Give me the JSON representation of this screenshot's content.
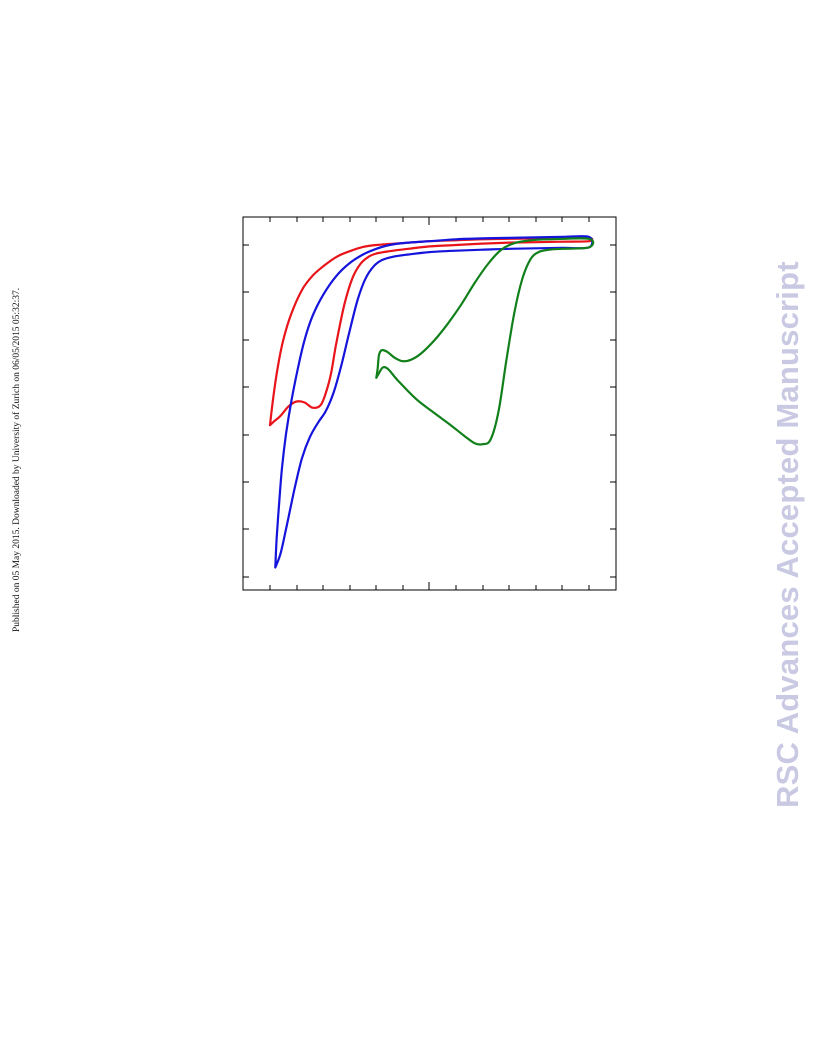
{
  "page": {
    "side_note": "Published on 05 May 2015. Downloaded by University of Zurich on 06/05/2015 05:32:37.",
    "watermark": "RSC Advances Accepted Manuscript"
  },
  "colors": {
    "red": "#e8141a",
    "blue": "#1414dc",
    "green": "#11801a",
    "frame": "#000000"
  },
  "chart_data": {
    "type": "line",
    "title": "",
    "xlabel": "",
    "ylabel": "",
    "xlim": [
      0,
      13
    ],
    "ylim": [
      0,
      7.5
    ],
    "grid": false,
    "legend": "none",
    "series": [
      {
        "color": "red",
        "points": [
          [
            1.0,
            3.2
          ],
          [
            1.05,
            3.45
          ],
          [
            1.15,
            3.9
          ],
          [
            1.3,
            4.45
          ],
          [
            1.5,
            5.0
          ],
          [
            1.8,
            5.55
          ],
          [
            2.2,
            6.05
          ],
          [
            2.6,
            6.35
          ],
          [
            3.0,
            6.55
          ],
          [
            3.5,
            6.75
          ],
          [
            4.0,
            6.87
          ],
          [
            4.5,
            6.96
          ],
          [
            5,
            7.0
          ],
          [
            6,
            7.04
          ],
          [
            7,
            7.08
          ],
          [
            8,
            7.1
          ],
          [
            9,
            7.12
          ],
          [
            10,
            7.13
          ],
          [
            11,
            7.14
          ],
          [
            12,
            7.15
          ],
          [
            13,
            7.15
          ],
          [
            13,
            7.08
          ],
          [
            12,
            7.07
          ],
          [
            11,
            7.06
          ],
          [
            10,
            7.05
          ],
          [
            9,
            7.03
          ],
          [
            8,
            7.0
          ],
          [
            7,
            6.97
          ],
          [
            6.2,
            6.92
          ],
          [
            5.5,
            6.87
          ],
          [
            5.0,
            6.82
          ],
          [
            4.7,
            6.75
          ],
          [
            4.4,
            6.6
          ],
          [
            4.1,
            6.3
          ],
          [
            3.8,
            5.75
          ],
          [
            3.5,
            4.95
          ],
          [
            3.3,
            4.3
          ],
          [
            3.1,
            3.88
          ],
          [
            2.9,
            3.62
          ],
          [
            2.6,
            3.57
          ],
          [
            2.3,
            3.68
          ],
          [
            2.0,
            3.7
          ],
          [
            1.7,
            3.6
          ],
          [
            1.4,
            3.4
          ],
          [
            1.15,
            3.28
          ],
          [
            1.0,
            3.2
          ]
        ]
      },
      {
        "color": "blue",
        "points": [
          [
            1.2,
            0.2
          ],
          [
            1.25,
            0.8
          ],
          [
            1.35,
            1.6
          ],
          [
            1.45,
            2.3
          ],
          [
            1.6,
            3.0
          ],
          [
            1.8,
            3.7
          ],
          [
            2.05,
            4.4
          ],
          [
            2.3,
            5.0
          ],
          [
            2.6,
            5.5
          ],
          [
            3.0,
            5.95
          ],
          [
            3.5,
            6.35
          ],
          [
            4.0,
            6.62
          ],
          [
            4.5,
            6.8
          ],
          [
            5,
            6.92
          ],
          [
            5.5,
            7.0
          ],
          [
            6,
            7.04
          ],
          [
            7,
            7.08
          ],
          [
            8,
            7.12
          ],
          [
            9,
            7.14
          ],
          [
            10,
            7.15
          ],
          [
            11,
            7.16
          ],
          [
            12,
            7.17
          ],
          [
            13,
            7.17
          ],
          [
            13,
            6.95
          ],
          [
            12,
            6.94
          ],
          [
            11,
            6.93
          ],
          [
            10,
            6.92
          ],
          [
            9,
            6.9
          ],
          [
            8,
            6.88
          ],
          [
            7,
            6.85
          ],
          [
            6.2,
            6.8
          ],
          [
            5.6,
            6.75
          ],
          [
            5.2,
            6.68
          ],
          [
            4.9,
            6.55
          ],
          [
            4.6,
            6.3
          ],
          [
            4.3,
            5.85
          ],
          [
            4.0,
            5.2
          ],
          [
            3.7,
            4.5
          ],
          [
            3.4,
            3.9
          ],
          [
            3.1,
            3.5
          ],
          [
            2.8,
            3.25
          ],
          [
            2.5,
            2.95
          ],
          [
            2.2,
            2.5
          ],
          [
            1.9,
            1.8
          ],
          [
            1.6,
            1.0
          ],
          [
            1.4,
            0.5
          ],
          [
            1.2,
            0.2
          ]
        ]
      },
      {
        "color": "green",
        "points": [
          [
            5.0,
            4.2
          ],
          [
            5.05,
            4.4
          ],
          [
            5.1,
            4.68
          ],
          [
            5.2,
            4.78
          ],
          [
            5.4,
            4.75
          ],
          [
            5.7,
            4.62
          ],
          [
            6.0,
            4.55
          ],
          [
            6.3,
            4.58
          ],
          [
            6.7,
            4.72
          ],
          [
            7.2,
            5.0
          ],
          [
            7.7,
            5.35
          ],
          [
            8.2,
            5.75
          ],
          [
            8.7,
            6.2
          ],
          [
            9.2,
            6.6
          ],
          [
            9.7,
            6.9
          ],
          [
            10.2,
            7.04
          ],
          [
            10.8,
            7.1
          ],
          [
            11.5,
            7.12
          ],
          [
            13,
            7.13
          ],
          [
            13,
            6.95
          ],
          [
            12,
            6.92
          ],
          [
            11.5,
            6.9
          ],
          [
            11.1,
            6.85
          ],
          [
            10.8,
            6.7
          ],
          [
            10.5,
            6.3
          ],
          [
            10.2,
            5.6
          ],
          [
            9.9,
            4.6
          ],
          [
            9.6,
            3.5
          ],
          [
            9.3,
            2.9
          ],
          [
            9.0,
            2.8
          ],
          [
            8.7,
            2.82
          ],
          [
            8.3,
            2.98
          ],
          [
            7.8,
            3.2
          ],
          [
            7.2,
            3.45
          ],
          [
            6.5,
            3.75
          ],
          [
            5.8,
            4.15
          ],
          [
            5.45,
            4.38
          ],
          [
            5.25,
            4.42
          ],
          [
            5.1,
            4.3
          ],
          [
            5.0,
            4.2
          ]
        ]
      }
    ]
  }
}
